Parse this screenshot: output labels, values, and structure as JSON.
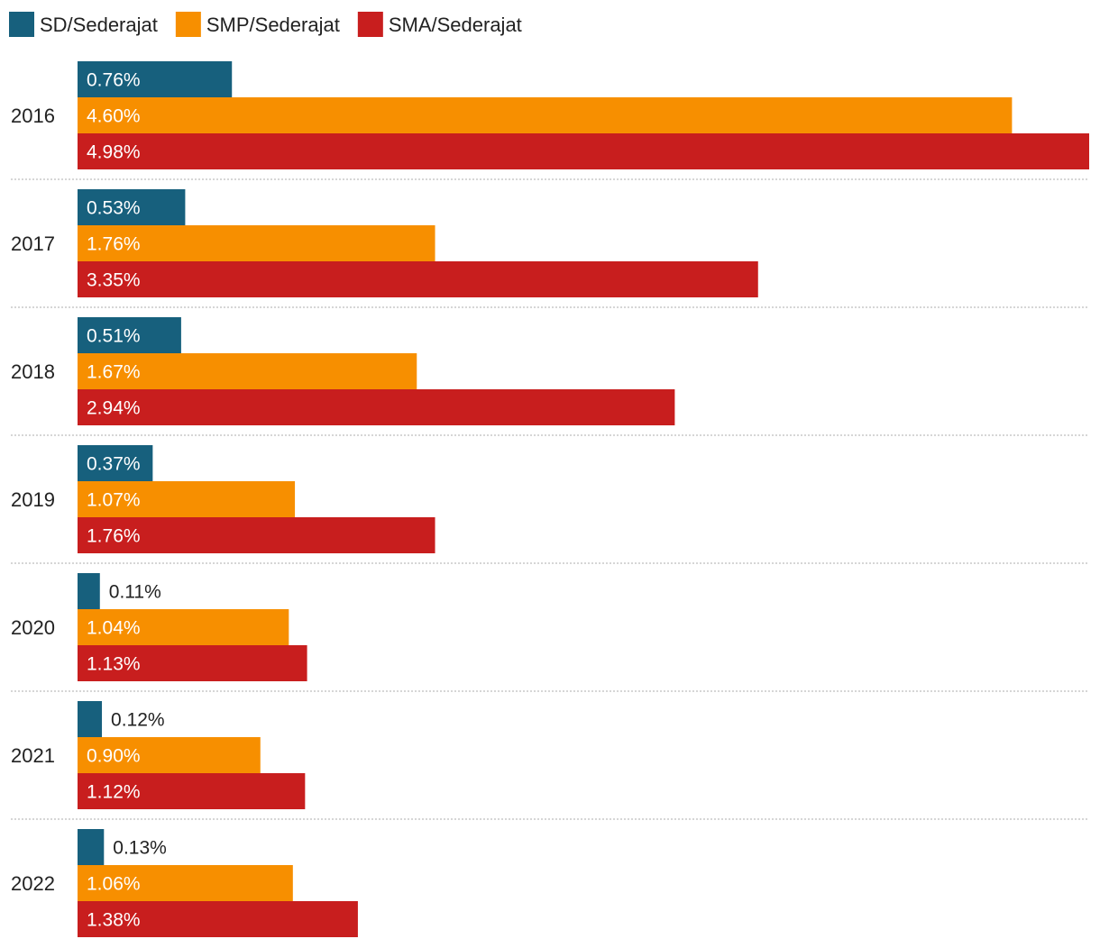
{
  "chart_data": {
    "type": "bar",
    "orientation": "horizontal",
    "categories": [
      "2016",
      "2017",
      "2018",
      "2019",
      "2020",
      "2021",
      "2022"
    ],
    "series": [
      {
        "name": "SD/Sederajat",
        "color": "#17607d",
        "values": [
          0.76,
          0.53,
          0.51,
          0.37,
          0.11,
          0.12,
          0.13
        ],
        "labels": [
          "0.76%",
          "0.53%",
          "0.51%",
          "0.37%",
          "0.11%",
          "0.12%",
          "0.13%"
        ]
      },
      {
        "name": "SMP/Sederajat",
        "color": "#f78f00",
        "values": [
          4.6,
          1.76,
          1.67,
          1.07,
          1.04,
          0.9,
          1.06
        ],
        "labels": [
          "4.60%",
          "1.76%",
          "1.67%",
          "1.07%",
          "1.04%",
          "0.90%",
          "1.06%"
        ]
      },
      {
        "name": "SMA/Sederajat",
        "color": "#c81e1e",
        "values": [
          4.98,
          3.35,
          2.94,
          1.76,
          1.13,
          1.12,
          1.38
        ],
        "labels": [
          "4.98%",
          "3.35%",
          "2.94%",
          "1.76%",
          "1.13%",
          "1.12%",
          "1.38%"
        ]
      }
    ],
    "xlim": [
      0,
      4.98
    ],
    "legend": "top-left",
    "grid": false,
    "title": "",
    "xlabel": "",
    "ylabel": ""
  }
}
